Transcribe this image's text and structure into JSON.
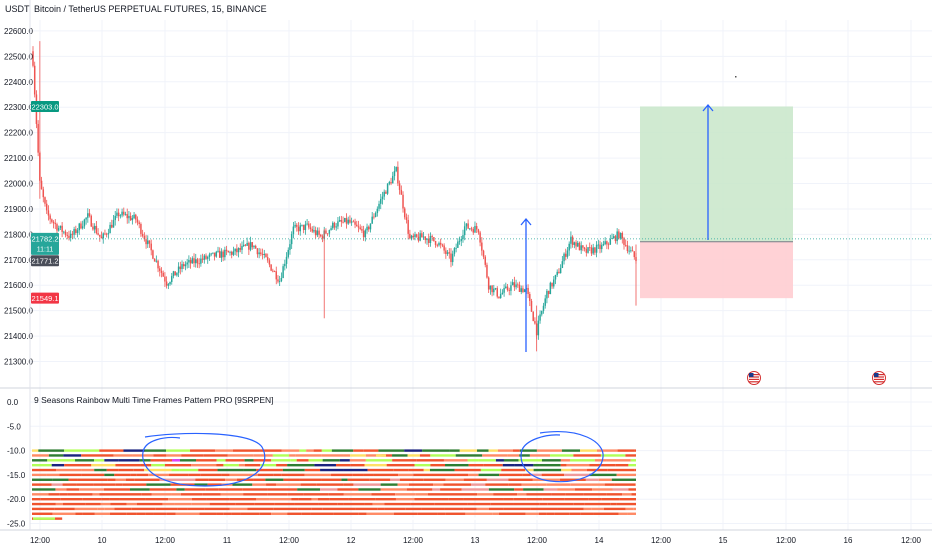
{
  "header": {
    "currency": "USDT",
    "title": "Bitcoin / TetherUS PERPETUAL FUTURES, 15, BINANCE"
  },
  "indicator": {
    "title": "9 Seasons Rainbow Multi Time Frames Pattern PRO [9SRPEN]"
  },
  "colors": {
    "up": "#26a69a",
    "down": "#ef5350",
    "target_zone": "#c8e6c9",
    "stop_zone": "#ffcdd2",
    "arrow": "#2962ff",
    "badge_green": "#089981",
    "badge_teal": "#26a69a",
    "badge_dark": "#4a4e59",
    "badge_red": "#f23645"
  },
  "badges": {
    "target": "22303.0",
    "current": "21782.2",
    "countdown": "11:11",
    "entry": "21771.2",
    "stop": "21549.1"
  },
  "chart_data": [
    {
      "type": "candlestick",
      "title": "Bitcoin / TetherUS PERPETUAL FUTURES, 15, BINANCE",
      "x_ticks": [
        "12:00",
        "10",
        "12:00",
        "11",
        "12:00",
        "12",
        "12:00",
        "13",
        "12:00",
        "14",
        "12:00",
        "15",
        "12:00",
        "16",
        "12:00"
      ],
      "y_ticks": [
        "22600.0",
        "22500.0",
        "22400.0",
        "22300.0",
        "22200.0",
        "22100.0",
        "22000.0",
        "21900.0",
        "21800.0",
        "21700.0",
        "21600.0",
        "21500.0",
        "21400.0",
        "21300.0"
      ],
      "ylim": [
        21250,
        22650
      ],
      "price_path": {
        "time_index": [
          0,
          4,
          8,
          14,
          22,
          32,
          40,
          50,
          60,
          70,
          78,
          88,
          98,
          108,
          118,
          128,
          136,
          144,
          152,
          160,
          168,
          176,
          184,
          194,
          204,
          212,
          220,
          228,
          236,
          244,
          252,
          260,
          266,
          272,
          280,
          288,
          294,
          300,
          306,
          314,
          322,
          332,
          342,
          352
        ],
        "close": [
          22480,
          22000,
          21880,
          21830,
          21790,
          21870,
          21780,
          21880,
          21860,
          21720,
          21610,
          21680,
          21700,
          21720,
          21730,
          21760,
          21700,
          21620,
          21820,
          21830,
          21790,
          21840,
          21850,
          21800,
          21950,
          22050,
          21780,
          21790,
          21770,
          21700,
          21830,
          21820,
          21600,
          21560,
          21600,
          21580,
          21420,
          21570,
          21640,
          21780,
          21730,
          21750,
          21800,
          21700
        ]
      },
      "positions": [
        {
          "entry": 21771.2,
          "target": 22303.0,
          "stop": 21549.1
        }
      ],
      "event_markers": 2
    },
    {
      "type": "heatmap",
      "title": "9 Seasons Rainbow Multi Time Frames Pattern PRO [9SRPEN]",
      "y_ticks": [
        "0.0",
        "-5.0",
        "-10.0",
        "-15.0",
        "-20.0",
        "-25.0"
      ],
      "ylim": [
        -26,
        1
      ],
      "row_levels": [
        -10,
        -11,
        -12,
        -13,
        -14,
        -15,
        -16,
        -17,
        -18,
        -19,
        -20,
        -21,
        -22,
        -23,
        -24
      ],
      "palette": [
        "#f0532d",
        "#ff8a65",
        "#b2ff59",
        "#2e7d32",
        "#1a237e",
        "#ffe066",
        "#ef9a9a",
        "#e040fb"
      ]
    }
  ]
}
